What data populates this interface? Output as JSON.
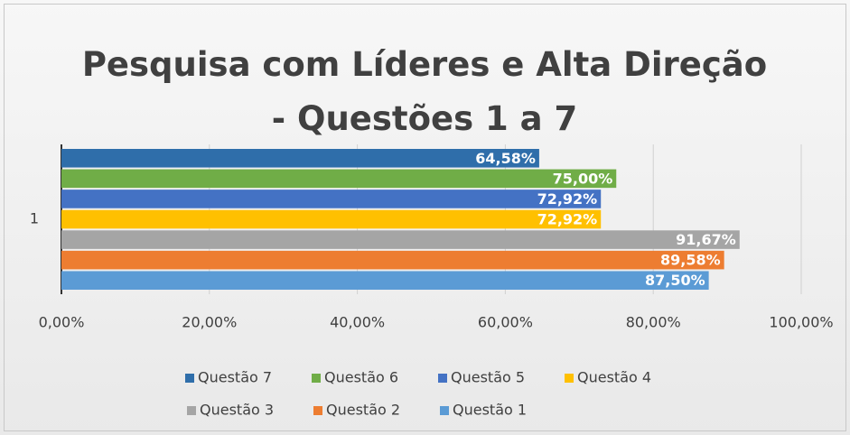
{
  "chart_data": {
    "type": "hbar",
    "title": "Pesquisa com Líderes e Alta Direção - Questões 1 a 7",
    "categories": [
      "1"
    ],
    "series": [
      {
        "name": "Questão 7",
        "color": "#2f6eaa",
        "values": [
          64.58
        ],
        "value_labels": [
          "64,58%"
        ]
      },
      {
        "name": "Questão 6",
        "color": "#70ad47",
        "values": [
          75.0
        ],
        "value_labels": [
          "75,00%"
        ]
      },
      {
        "name": "Questão 5",
        "color": "#4472c4",
        "values": [
          72.92
        ],
        "value_labels": [
          "72,92%"
        ]
      },
      {
        "name": "Questão 4",
        "color": "#ffc000",
        "values": [
          72.92
        ],
        "value_labels": [
          "72,92%"
        ]
      },
      {
        "name": "Questão 3",
        "color": "#a5a5a5",
        "values": [
          91.67
        ],
        "value_labels": [
          "91,67%"
        ]
      },
      {
        "name": "Questão 2",
        "color": "#ed7d31",
        "values": [
          89.58
        ],
        "value_labels": [
          "89,58%"
        ]
      },
      {
        "name": "Questão 1",
        "color": "#5b9bd5",
        "values": [
          87.5
        ],
        "value_labels": [
          "87,50%"
        ]
      }
    ],
    "xlim": [
      0,
      100
    ],
    "xticks": [
      {
        "value": 0,
        "label": "0,00%"
      },
      {
        "value": 20,
        "label": "20,00%"
      },
      {
        "value": 40,
        "label": "40,00%"
      },
      {
        "value": 60,
        "label": "60,00%"
      },
      {
        "value": 80,
        "label": "80,00%"
      },
      {
        "value": 100,
        "label": "100,00%"
      }
    ],
    "grid": true,
    "legend": "bottom"
  }
}
